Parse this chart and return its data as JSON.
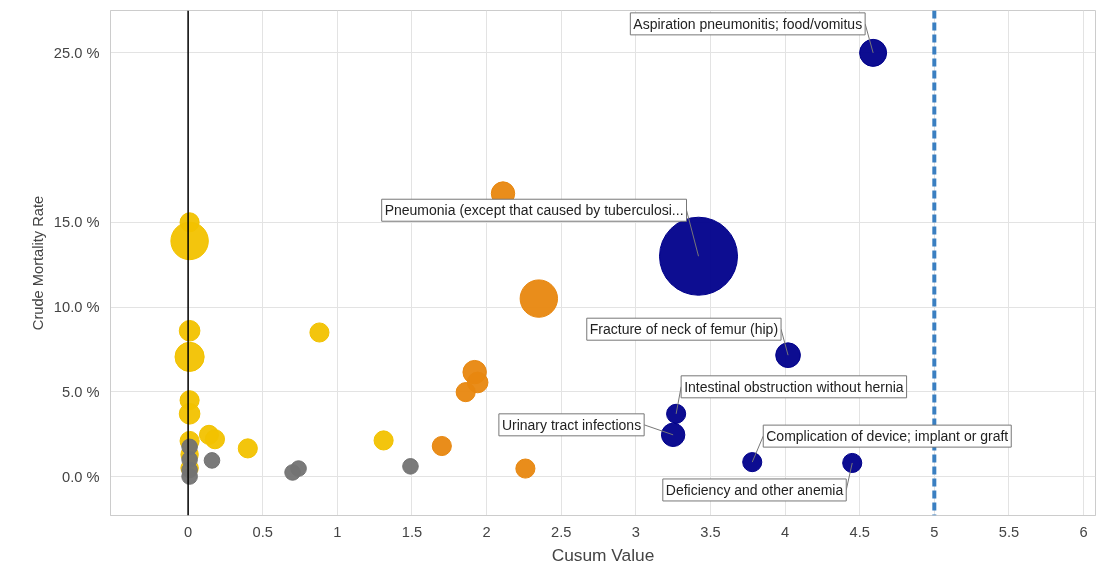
{
  "chart_data": {
    "type": "bubble",
    "xlabel": "Cusum Value",
    "ylabel": "Crude Mortality Rate",
    "xlim": [
      -0.52,
      6.08
    ],
    "xticks": [
      0,
      0.5,
      1,
      1.5,
      2,
      2.5,
      3,
      3.5,
      4,
      4.5,
      5,
      5.5,
      6
    ],
    "ylim": [
      -2.3,
      27.5
    ],
    "yticks": [
      {
        "value": 0,
        "label": "0.0 %"
      },
      {
        "value": 5,
        "label": "5.0 %"
      },
      {
        "value": 10,
        "label": "10.0 %"
      },
      {
        "value": 15,
        "label": "15.0 %"
      },
      {
        "value": 25,
        "label": "25.0 %"
      }
    ],
    "grid": true,
    "series": [
      {
        "color": "#f2c200",
        "x": [
          0.01,
          0.01,
          0.01,
          0.88,
          0.01,
          0.01,
          0.01,
          0.14,
          0.18,
          0.01,
          0.4,
          1.31,
          0.01,
          0.01
        ],
        "values": [
          15.0,
          13.9,
          8.6,
          8.5,
          7.06,
          4.5,
          3.7,
          2.46,
          2.2,
          2.1,
          1.66,
          2.13,
          1.3,
          0.5
        ],
        "sizes": [
          0.06,
          0.23,
          0.07,
          0.06,
          0.14,
          0.06,
          0.07,
          0.06,
          0.06,
          0.06,
          0.06,
          0.06,
          0.05,
          0.05
        ]
      },
      {
        "color": "#737373",
        "x": [
          0.01,
          0.01,
          0.01,
          0.01,
          0.16,
          0.7,
          0.74,
          1.49
        ],
        "values": [
          1.75,
          1.0,
          0.38,
          0.0,
          0.95,
          0.24,
          0.47,
          0.6
        ],
        "sizes": [
          0.04,
          0.04,
          0.04,
          0.04,
          0.04,
          0.04,
          0.04,
          0.04
        ]
      },
      {
        "color": "#e8870f",
        "x": [
          2.11,
          2.35,
          1.92,
          1.94,
          1.86,
          1.7,
          2.26
        ],
        "values": [
          16.7,
          10.5,
          6.16,
          5.55,
          4.98,
          1.8,
          0.47
        ],
        "sizes": [
          0.09,
          0.23,
          0.09,
          0.07,
          0.06,
          0.06,
          0.06
        ]
      },
      {
        "color": "#00008b",
        "x": [
          4.59,
          3.42,
          4.02,
          3.27,
          3.25,
          3.78,
          4.45
        ],
        "values": [
          25.0,
          13.0,
          7.16,
          3.7,
          2.46,
          0.85,
          0.8
        ],
        "sizes": [
          0.12,
          1,
          0.1,
          0.06,
          0.09,
          0.06,
          0.06
        ]
      }
    ],
    "ref_lines": [
      {
        "axis": "x",
        "value": 0,
        "color": "#000000",
        "line_style": "solid"
      },
      {
        "axis": "x",
        "value": 5,
        "color": "#3a7fc1",
        "line_style": "dashed"
      }
    ],
    "annotations": [
      {
        "text": "Aspiration pneumonitis; food/vomitus",
        "x": 4.59,
        "y": 25.0
      },
      {
        "text": "Pneumonia (except that caused by tuberculosi...",
        "x": 3.42,
        "y": 13.0
      },
      {
        "text": "Fracture of neck of femur (hip)",
        "x": 4.02,
        "y": 7.16
      },
      {
        "text": "Intestinal obstruction without hernia",
        "x": 3.27,
        "y": 3.7
      },
      {
        "text": "Urinary tract infections",
        "x": 3.25,
        "y": 2.46
      },
      {
        "text": "Complication of device; implant or graft",
        "x": 3.78,
        "y": 0.85
      },
      {
        "text": "Deficiency and other anemia",
        "x": 4.45,
        "y": 0.8
      }
    ]
  }
}
